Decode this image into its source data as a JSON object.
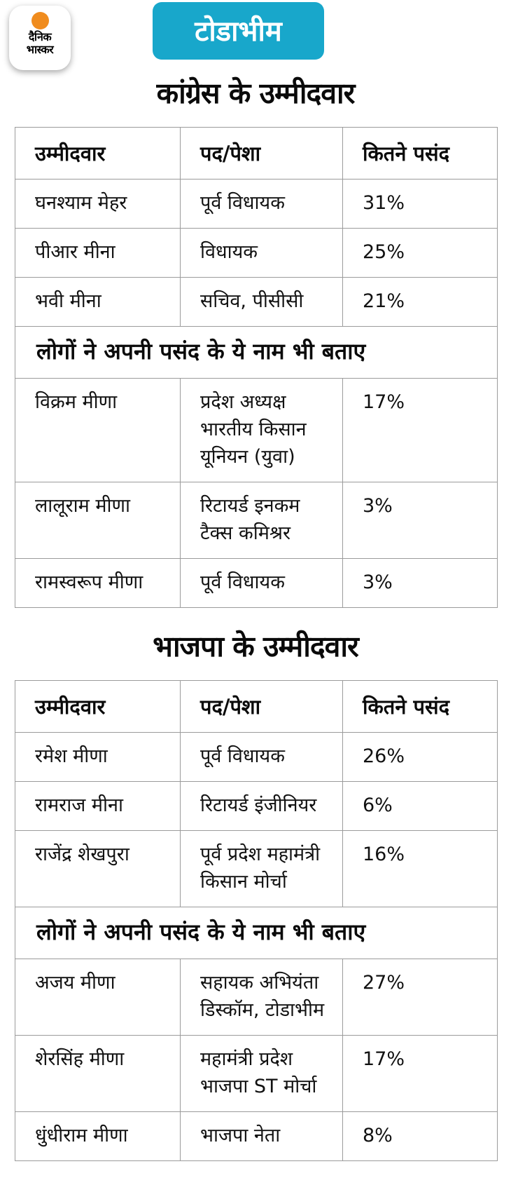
{
  "brand": {
    "line1": "दैनिक",
    "line2": "भास्कर",
    "sun_color": "#f08c1e"
  },
  "banner": {
    "label": "टोडाभीम",
    "bg_color": "#18a7cb"
  },
  "congress": {
    "title": "कांग्रेस के उम्मीदवार",
    "columns": [
      "उम्मीदवार",
      "पद/पेशा",
      "कितने पसंद"
    ],
    "rows": [
      {
        "name": "घनश्याम मेहर",
        "role": "पूर्व विधायक",
        "pct": "31%"
      },
      {
        "name": "पीआर मीना",
        "role": "विधायक",
        "pct": "25%"
      },
      {
        "name": "भवी मीना",
        "role": "सचिव, पीसीसी",
        "pct": "21%"
      }
    ],
    "more_label": "लोगों ने अपनी पसंद के ये नाम भी बताए",
    "more_rows": [
      {
        "name": "विक्रम मीणा",
        "role": "प्रदेश अध्यक्ष\nभारतीय किसान\nयूनियन (युवा)",
        "pct": "17%"
      },
      {
        "name": "लालूराम मीणा",
        "role": "रिटायर्ड इनकम\nटैक्स कमिश्रर",
        "pct": "3%"
      },
      {
        "name": "रामस्वरूप मीणा",
        "role": "पूर्व विधायक",
        "pct": "3%"
      }
    ]
  },
  "bjp": {
    "title": "भाजपा के उम्मीदवार",
    "columns": [
      "उम्मीदवार",
      "पद/पेशा",
      "कितने पसंद"
    ],
    "rows": [
      {
        "name": "रमेश मीणा",
        "role": "पूर्व विधायक",
        "pct": "26%"
      },
      {
        "name": "रामराज मीना",
        "role": "रिटायर्ड इंजीनियर",
        "pct": "6%"
      },
      {
        "name": "राजेंद्र शेखपुरा",
        "role": "पूर्व प्रदेश महामंत्री\nकिसान मोर्चा",
        "pct": "16%"
      }
    ],
    "more_label": "लोगों ने अपनी पसंद के ये नाम भी बताए",
    "more_rows": [
      {
        "name": "अजय मीणा",
        "role": "सहायक अभियंता\nडिस्कॉम, टोडाभीम",
        "pct": "27%"
      },
      {
        "name": "शेरसिंह मीणा",
        "role": "महामंत्री प्रदेश\nभाजपा ST मोर्चा",
        "pct": "17%"
      },
      {
        "name": "धुंधीराम मीणा",
        "role": "भाजपा नेता",
        "pct": "8%"
      }
    ]
  },
  "chart_data": [
    {
      "type": "table",
      "title": "कांग्रेस के उम्मीदवार",
      "columns": [
        "उम्मीदवार",
        "पद/पेशा",
        "कितने पसंद"
      ],
      "categories": [
        "घनश्याम मेहर",
        "पीआर मीना",
        "भवी मीना",
        "विक्रम मीणा",
        "लालूराम मीणा",
        "रामस्वरूप मीणा"
      ],
      "roles": [
        "पूर्व विधायक",
        "विधायक",
        "सचिव, पीसीसी",
        "प्रदेश अध्यक्ष भारतीय किसान यूनियन (युवा)",
        "रिटायर्ड इनकम टैक्स कमिश्रर",
        "पूर्व विधायक"
      ],
      "values": [
        31,
        25,
        21,
        17,
        3,
        3
      ],
      "value_unit": "%",
      "section_break_after_index": 2,
      "section_break_label": "लोगों ने अपनी पसंद के ये नाम भी बताए"
    },
    {
      "type": "table",
      "title": "भाजपा के उम्मीदवार",
      "columns": [
        "उम्मीदवार",
        "पद/पेशा",
        "कितने पसंद"
      ],
      "categories": [
        "रमेश मीणा",
        "रामराज मीना",
        "राजेंद्र शेखपुरा",
        "अजय मीणा",
        "शेरसिंह मीणा",
        "धुंधीराम मीणा"
      ],
      "roles": [
        "पूर्व विधायक",
        "रिटायर्ड इंजीनियर",
        "पूर्व प्रदेश महामंत्री किसान मोर्चा",
        "सहायक अभियंता डिस्कॉम, टोडाभीम",
        "महामंत्री प्रदेश भाजपा ST मोर्चा",
        "भाजपा नेता"
      ],
      "values": [
        26,
        6,
        16,
        27,
        17,
        8
      ],
      "value_unit": "%",
      "section_break_after_index": 2,
      "section_break_label": "लोगों ने अपनी पसंद के ये नाम भी बताए"
    }
  ]
}
